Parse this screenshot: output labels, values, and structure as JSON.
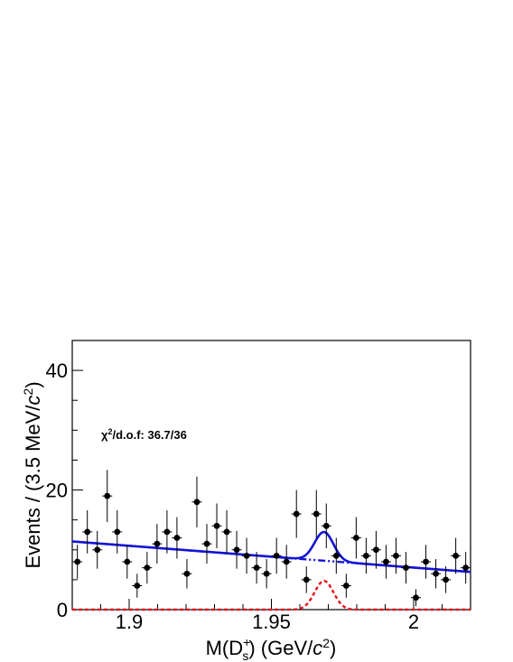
{
  "chart_data": {
    "type": "scatter",
    "xlabel": "M(D_s^+) (GeV/c^2)",
    "ylabel": "Events / (3.5 MeV/c^2)",
    "xlim": [
      1.88,
      2.02
    ],
    "ylim": [
      0,
      45
    ],
    "x_ticks": [
      {
        "value": 1.9,
        "label": "1.9"
      },
      {
        "value": 1.95,
        "label": "1.95"
      },
      {
        "value": 2.0,
        "label": "2"
      }
    ],
    "y_ticks": [
      {
        "value": 0,
        "label": "0"
      },
      {
        "value": 20,
        "label": "20"
      },
      {
        "value": 40,
        "label": "40"
      }
    ],
    "annotation": "χ²/d.o.f: 36.7/36",
    "bin_width": 0.0035,
    "series": [
      {
        "kind": "data",
        "color": "#000000",
        "points": [
          [
            1.8818,
            8
          ],
          [
            1.8853,
            13
          ],
          [
            1.8888,
            10
          ],
          [
            1.8923,
            19
          ],
          [
            1.8958,
            13
          ],
          [
            1.8993,
            8
          ],
          [
            1.9028,
            4
          ],
          [
            1.9063,
            7
          ],
          [
            1.9098,
            11
          ],
          [
            1.9133,
            13
          ],
          [
            1.9168,
            12
          ],
          [
            1.9203,
            6
          ],
          [
            1.9238,
            18
          ],
          [
            1.9273,
            11
          ],
          [
            1.9308,
            14
          ],
          [
            1.9343,
            13
          ],
          [
            1.9378,
            10
          ],
          [
            1.9413,
            9
          ],
          [
            1.9448,
            7
          ],
          [
            1.9483,
            6
          ],
          [
            1.9518,
            9
          ],
          [
            1.9553,
            8
          ],
          [
            1.9588,
            16
          ],
          [
            1.9623,
            5
          ],
          [
            1.9658,
            16
          ],
          [
            1.9693,
            14
          ],
          [
            1.9728,
            9
          ],
          [
            1.9763,
            4
          ],
          [
            1.9798,
            12
          ],
          [
            1.9833,
            9
          ],
          [
            1.9868,
            10
          ],
          [
            1.9903,
            8
          ],
          [
            1.9938,
            9
          ],
          [
            1.9973,
            7
          ],
          [
            2.0008,
            2
          ],
          [
            2.0043,
            8
          ],
          [
            2.0078,
            6
          ],
          [
            2.0113,
            5
          ],
          [
            2.0148,
            9
          ],
          [
            2.0183,
            7
          ]
        ]
      },
      {
        "kind": "total-fit",
        "color": "#1515d6",
        "style": "solid",
        "background": {
          "a": 11.4,
          "b": 6.3,
          "x0": 1.88,
          "x1": 2.02
        },
        "signal": {
          "amplitude": 4.8,
          "mean": 1.9685,
          "sigma": 0.0033
        }
      },
      {
        "kind": "background",
        "color": "#1515d6",
        "style": "dash-dot"
      },
      {
        "kind": "signal",
        "color": "#e8111a",
        "style": "dashed"
      }
    ]
  }
}
